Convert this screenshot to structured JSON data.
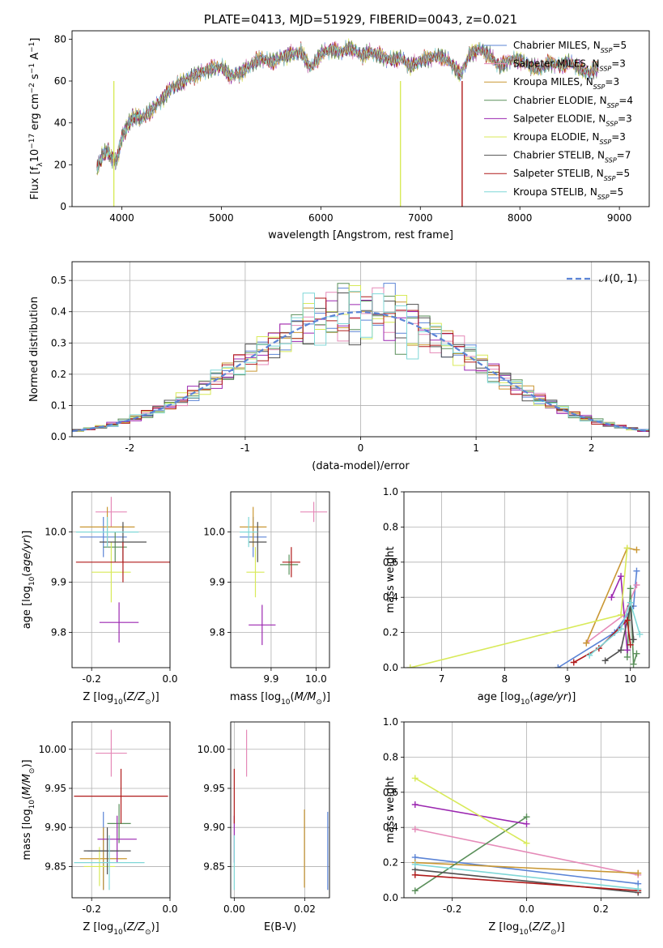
{
  "colors": {
    "C0": "#5b84d6",
    "C1": "#e07b28",
    "C2": "#c99733",
    "C3": "#5a8f5a",
    "C4": "#9b27b0",
    "C5": "#d8ea59",
    "C6": "#505050",
    "C7": "#b01a1a",
    "C8": "#7fd7d7",
    "C9": "#e58ab8"
  },
  "models": [
    {
      "name": "Chabrier MILES",
      "nssp": "5",
      "color": "#5b84d6"
    },
    {
      "name": "Salpeter MILES",
      "nssp": "3",
      "color": "#e58ab8"
    },
    {
      "name": "Kroupa MILES",
      "nssp": "3",
      "color": "#c99733"
    },
    {
      "name": "Chabrier ELODIE",
      "nssp": "4",
      "color": "#5a8f5a"
    },
    {
      "name": "Salpeter ELODIE",
      "nssp": "3",
      "color": "#9b27b0"
    },
    {
      "name": "Kroupa ELODIE",
      "nssp": "3",
      "color": "#d8ea59"
    },
    {
      "name": "Chabrier STELIB",
      "nssp": "7",
      "color": "#505050"
    },
    {
      "name": "Salpeter STELIB",
      "nssp": "5",
      "color": "#b01a1a"
    },
    {
      "name": "Kroupa STELIB",
      "nssp": "5",
      "color": "#7fd7d7"
    }
  ],
  "chart_data": [
    {
      "id": "spectrum",
      "type": "line",
      "title": "PLATE=0413, MJD=51929, FIBERID=0043, z=0.021",
      "xlabel": "wavelength [Angstrom, rest frame]",
      "ylabel": "Flux [f_λ 10^-17 erg cm^-2 s^-1 A^-1]",
      "xlim": [
        3500,
        9300
      ],
      "ylim": [
        0,
        84
      ],
      "xticks": [
        "4000",
        "5000",
        "6000",
        "7000",
        "8000",
        "9000"
      ],
      "yticks": [
        "0",
        "20",
        "40",
        "60",
        "80"
      ],
      "grid": false,
      "legend": "top-right",
      "x": [
        3750,
        3800,
        3850,
        3900,
        3950,
        4000,
        4050,
        4100,
        4150,
        4200,
        4300,
        4400,
        4500,
        4600,
        4700,
        4800,
        4900,
        5000,
        5100,
        5200,
        5300,
        5400,
        5500,
        5600,
        5700,
        5800,
        5900,
        6000,
        6100,
        6200,
        6300,
        6400,
        6500,
        6600,
        6700,
        6800,
        6900,
        7000,
        7100,
        7200,
        7300,
        7400,
        7500,
        7600,
        7700,
        7800,
        7900,
        8000,
        8100,
        8200,
        8300,
        8400,
        8500,
        8600,
        8700,
        8800
      ],
      "flux": [
        18,
        24,
        27,
        23,
        22,
        33,
        38,
        42,
        43,
        42,
        46,
        51,
        57,
        59,
        62,
        64,
        66,
        67,
        62,
        64,
        68,
        71,
        69,
        71,
        73,
        74,
        66,
        73,
        75,
        74,
        76,
        72,
        74,
        72,
        70,
        71,
        67,
        70,
        71,
        72,
        69,
        63,
        73,
        75,
        72,
        67,
        70,
        70,
        67,
        66,
        69,
        67,
        69,
        66,
        64,
        67
      ],
      "drops": [
        {
          "x": 3920,
          "model": "Kroupa ELODIE"
        },
        {
          "x": 6800,
          "model": "Kroupa ELODIE"
        },
        {
          "x": 7420,
          "model": "Salpeter STELIB"
        }
      ]
    },
    {
      "id": "residuals",
      "type": "bar",
      "xlabel": "(data-model)/error",
      "ylabel": "Normed distribution",
      "xlim": [
        -2.5,
        2.5
      ],
      "ylim": [
        0,
        0.56
      ],
      "xticks": [
        "-2",
        "-1",
        "0",
        "1",
        "2"
      ],
      "yticks": [
        "0.0",
        "0.1",
        "0.2",
        "0.3",
        "0.4",
        "0.5"
      ],
      "grid": true,
      "legend": "top-right",
      "legend_label": "𝒩(0, 1)",
      "bin_width": 0.1
    },
    {
      "id": "age-vs-Z",
      "type": "scatter",
      "xlabel": "Z [log10(Z/Z⊙)]",
      "ylabel": "age [log10(age/yr)]",
      "xlim": [
        -0.25,
        0.0
      ],
      "ylim": [
        9.73,
        10.08
      ],
      "xticks": [
        "-0.2",
        "0.0"
      ],
      "yticks": [
        "9.8",
        "9.9",
        "10.0"
      ],
      "grid": true,
      "points": [
        {
          "model": "Chabrier MILES",
          "x": -0.17,
          "y": 9.99,
          "xerr": 0.06,
          "yerr": 0.04
        },
        {
          "model": "Salpeter MILES",
          "x": -0.15,
          "y": 10.04,
          "xerr": 0.04,
          "yerr": 0.03
        },
        {
          "model": "Kroupa MILES",
          "x": -0.16,
          "y": 10.01,
          "xerr": 0.07,
          "yerr": 0.04
        },
        {
          "model": "Chabrier ELODIE",
          "x": -0.14,
          "y": 9.97,
          "xerr": 0.03,
          "yerr": 0.03
        },
        {
          "model": "Salpeter ELODIE",
          "x": -0.13,
          "y": 9.82,
          "xerr": 0.05,
          "yerr": 0.04
        },
        {
          "model": "Kroupa ELODIE",
          "x": -0.15,
          "y": 9.92,
          "xerr": 0.05,
          "yerr": 0.06
        },
        {
          "model": "Chabrier STELIB",
          "x": -0.12,
          "y": 9.98,
          "xerr": 0.06,
          "yerr": 0.04
        },
        {
          "model": "Salpeter STELIB",
          "x": -0.12,
          "y": 9.94,
          "xerr": 0.12,
          "yerr": 0.04
        },
        {
          "model": "Kroupa STELIB",
          "x": -0.16,
          "y": 10.0,
          "xerr": 0.08,
          "yerr": 0.03
        }
      ]
    },
    {
      "id": "age-vs-mass",
      "type": "scatter",
      "xlabel": "mass [log10(M/M⊙)]",
      "ylabel": "",
      "xlim": [
        9.81,
        10.03
      ],
      "ylim": [
        9.73,
        10.08
      ],
      "xticks": [
        "9.9",
        "10.0"
      ],
      "yticks": [
        "9.8",
        "9.9",
        "10.0"
      ],
      "grid": true,
      "points": [
        {
          "model": "Chabrier MILES",
          "x": 9.86,
          "y": 9.99,
          "xerr": 0.03,
          "yerr": 0.04
        },
        {
          "model": "Salpeter MILES",
          "x": 9.995,
          "y": 10.04,
          "xerr": 0.03,
          "yerr": 0.02
        },
        {
          "model": "Kroupa MILES",
          "x": 9.86,
          "y": 10.01,
          "xerr": 0.03,
          "yerr": 0.04
        },
        {
          "model": "Chabrier ELODIE",
          "x": 9.94,
          "y": 9.935,
          "xerr": 0.02,
          "yerr": 0.02
        },
        {
          "model": "Salpeter ELODIE",
          "x": 9.88,
          "y": 9.815,
          "xerr": 0.03,
          "yerr": 0.04
        },
        {
          "model": "Kroupa ELODIE",
          "x": 9.865,
          "y": 9.92,
          "xerr": 0.02,
          "yerr": 0.05
        },
        {
          "model": "Chabrier STELIB",
          "x": 9.87,
          "y": 9.98,
          "xerr": 0.02,
          "yerr": 0.04
        },
        {
          "model": "Salpeter STELIB",
          "x": 9.945,
          "y": 9.94,
          "xerr": 0.02,
          "yerr": 0.03
        },
        {
          "model": "Kroupa STELIB",
          "x": 9.85,
          "y": 10.0,
          "xerr": 0.02,
          "yerr": 0.03
        }
      ]
    },
    {
      "id": "weight-vs-age",
      "type": "line",
      "xlabel": "age [log10(age/yr)]",
      "ylabel": "mass weight",
      "xlim": [
        6.4,
        10.3
      ],
      "ylim": [
        0.0,
        1.0
      ],
      "xticks": [
        "7",
        "8",
        "9",
        "10"
      ],
      "yticks": [
        "0.0",
        "0.2",
        "0.4",
        "0.6",
        "0.8",
        "1.0"
      ],
      "grid": true,
      "series": [
        {
          "model": "Chabrier MILES",
          "x": [
            8.85,
            9.75,
            10.05,
            10.1
          ],
          "y": [
            0.0,
            0.2,
            0.35,
            0.55
          ]
        },
        {
          "model": "Salpeter MILES",
          "x": [
            9.3,
            9.9,
            10.1
          ],
          "y": [
            0.14,
            0.3,
            0.47
          ]
        },
        {
          "model": "Kroupa MILES",
          "x": [
            9.3,
            9.95,
            10.1
          ],
          "y": [
            0.14,
            0.68,
            0.67
          ]
        },
        {
          "model": "Chabrier ELODIE",
          "x": [
            9.95,
            10.0,
            10.05,
            10.1
          ],
          "y": [
            0.06,
            0.45,
            0.02,
            0.08
          ]
        },
        {
          "model": "Salpeter ELODIE",
          "x": [
            9.7,
            9.85,
            9.95
          ],
          "y": [
            0.4,
            0.52,
            0.1
          ]
        },
        {
          "model": "Kroupa ELODIE",
          "x": [
            6.5,
            9.85,
            9.95
          ],
          "y": [
            0.0,
            0.3,
            0.68
          ]
        },
        {
          "model": "Chabrier STELIB",
          "x": [
            9.6,
            9.85,
            10.0,
            10.05
          ],
          "y": [
            0.04,
            0.1,
            0.35,
            0.16
          ]
        },
        {
          "model": "Salpeter STELIB",
          "x": [
            9.1,
            9.5,
            9.95,
            10.0
          ],
          "y": [
            0.03,
            0.11,
            0.27,
            0.13
          ]
        },
        {
          "model": "Kroupa STELIB",
          "x": [
            9.35,
            9.85,
            10.0,
            10.15
          ],
          "y": [
            0.07,
            0.22,
            0.37,
            0.19
          ]
        }
      ]
    },
    {
      "id": "mass-vs-Z",
      "type": "scatter",
      "xlabel": "Z [log10(Z/Z⊙)]",
      "ylabel": "mass [log10(M/M⊙)]",
      "xlim": [
        -0.25,
        0.0
      ],
      "ylim": [
        9.81,
        10.035
      ],
      "xticks": [
        "-0.2",
        "0.0"
      ],
      "yticks": [
        "9.85",
        "9.90",
        "9.95",
        "10.00"
      ],
      "grid": true,
      "points": [
        {
          "model": "Chabrier MILES",
          "x": -0.17,
          "y": 9.87,
          "xerr": 0.04,
          "yerr": 0.05
        },
        {
          "model": "Salpeter MILES",
          "x": -0.15,
          "y": 9.995,
          "xerr": 0.04,
          "yerr": 0.03
        },
        {
          "model": "Kroupa MILES",
          "x": -0.17,
          "y": 9.86,
          "xerr": 0.06,
          "yerr": 0.04
        },
        {
          "model": "Chabrier ELODIE",
          "x": -0.13,
          "y": 9.905,
          "xerr": 0.03,
          "yerr": 0.025
        },
        {
          "model": "Salpeter ELODIE",
          "x": -0.135,
          "y": 9.885,
          "xerr": 0.05,
          "yerr": 0.03
        },
        {
          "model": "Kroupa ELODIE",
          "x": -0.18,
          "y": 9.85,
          "xerr": 0.04,
          "yerr": 0.025
        },
        {
          "model": "Chabrier STELIB",
          "x": -0.16,
          "y": 9.87,
          "xerr": 0.06,
          "yerr": 0.03
        },
        {
          "model": "Salpeter STELIB",
          "x": -0.125,
          "y": 9.94,
          "xerr": 0.12,
          "yerr": 0.035
        },
        {
          "model": "Kroupa STELIB",
          "x": -0.155,
          "y": 9.855,
          "xerr": 0.09,
          "yerr": 0.035
        }
      ]
    },
    {
      "id": "mass-vs-EBV",
      "type": "scatter",
      "xlabel": "E(B-V)",
      "ylabel": "",
      "xlim": [
        -0.001,
        0.027
      ],
      "ylim": [
        9.81,
        10.035
      ],
      "xticks": [
        "0.00",
        "0.02"
      ],
      "yticks": [
        "9.85",
        "9.90",
        "9.95",
        "10.00"
      ],
      "grid": true,
      "points": [
        {
          "model": "Chabrier MILES",
          "x": 0.0265,
          "y": 9.87,
          "xerr": 0.0,
          "yerr": 0.05
        },
        {
          "model": "Salpeter MILES",
          "x": 0.0035,
          "y": 9.995,
          "xerr": 0.0,
          "yerr": 0.03
        },
        {
          "model": "Kroupa MILES",
          "x": 0.0199,
          "y": 9.873,
          "xerr": 0.0,
          "yerr": 0.05
        },
        {
          "model": "Salpeter ELODIE",
          "x": 0.0,
          "y": 9.885,
          "xerr": 0.0,
          "yerr": 0.03
        },
        {
          "model": "Salpeter STELIB",
          "x": 0.0,
          "y": 9.94,
          "xerr": 0.0,
          "yerr": 0.035
        },
        {
          "model": "Kroupa STELIB",
          "x": 0.0,
          "y": 9.855,
          "xerr": 0.0,
          "yerr": 0.035
        }
      ]
    },
    {
      "id": "weight-vs-Z",
      "type": "line",
      "xlabel": "Z [log10(Z/Z⊙)]",
      "ylabel": "mass weight",
      "xlim": [
        -0.33,
        0.33
      ],
      "ylim": [
        0.0,
        1.0
      ],
      "xticks": [
        "-0.2",
        "0.0",
        "0.2"
      ],
      "yticks": [
        "0.0",
        "0.2",
        "0.4",
        "0.6",
        "0.8",
        "1.0"
      ],
      "grid": true,
      "series": [
        {
          "model": "Chabrier MILES",
          "x": [
            -0.3,
            0.3
          ],
          "y": [
            0.23,
            0.08
          ]
        },
        {
          "model": "Salpeter MILES",
          "x": [
            -0.3,
            0.3
          ],
          "y": [
            0.39,
            0.13
          ]
        },
        {
          "model": "Kroupa MILES",
          "x": [
            -0.3,
            0.3
          ],
          "y": [
            0.2,
            0.14
          ]
        },
        {
          "model": "Chabrier ELODIE",
          "x": [
            -0.3,
            0.0
          ],
          "y": [
            0.04,
            0.46
          ]
        },
        {
          "model": "Salpeter ELODIE",
          "x": [
            -0.3,
            0.0
          ],
          "y": [
            0.53,
            0.42
          ]
        },
        {
          "model": "Kroupa ELODIE",
          "x": [
            -0.3,
            0.0
          ],
          "y": [
            0.68,
            0.31
          ]
        },
        {
          "model": "Chabrier STELIB",
          "x": [
            -0.3,
            0.3
          ],
          "y": [
            0.16,
            0.03
          ]
        },
        {
          "model": "Salpeter STELIB",
          "x": [
            -0.3,
            0.3
          ],
          "y": [
            0.13,
            0.04
          ]
        },
        {
          "model": "Kroupa STELIB",
          "x": [
            -0.3,
            0.3
          ],
          "y": [
            0.19,
            0.05
          ]
        }
      ]
    }
  ]
}
